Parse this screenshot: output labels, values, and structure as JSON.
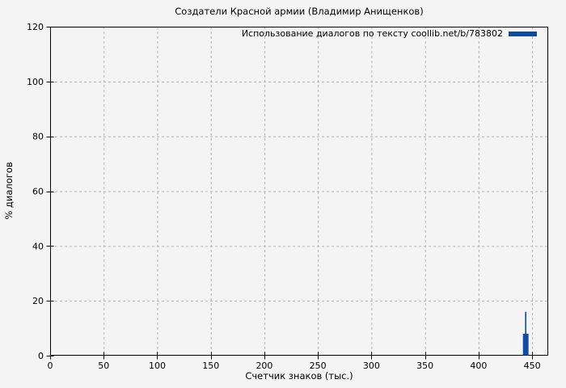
{
  "figure": {
    "title": "Создатели Красной армии (Владимир Анищенков)",
    "background": "#f4f4f4"
  },
  "legend": {
    "label": "Использование диалогов по тексту coollib.net/b/783802",
    "color": "#0d4aa8",
    "position": "top-right"
  },
  "chart_data": {
    "type": "bar",
    "style": "impulses",
    "title": "Создатели Красной армии (Владимир Анищенков)",
    "xlabel": "Счетчик знаков (тыс.)",
    "ylabel": "% диалогов",
    "xlim": [
      0,
      465
    ],
    "ylim": [
      0,
      120
    ],
    "x_ticks": [
      0,
      50,
      100,
      150,
      200,
      250,
      300,
      350,
      400,
      450
    ],
    "y_ticks": [
      0,
      20,
      40,
      60,
      80,
      100,
      120
    ],
    "grid": true,
    "legend_position": "top-right",
    "series": [
      {
        "name": "Использование диалогов по тексту coollib.net/b/783802",
        "color": "#0d4aa8",
        "points": [
          {
            "x": 442,
            "y": 8
          },
          {
            "x": 443,
            "y": 8
          },
          {
            "x": 444,
            "y": 16
          },
          {
            "x": 445,
            "y": 8
          },
          {
            "x": 446,
            "y": 8
          }
        ]
      }
    ],
    "colors": {
      "grid": "#b3b3b3",
      "axis": "#000000",
      "series": "#0d4aa8"
    }
  }
}
